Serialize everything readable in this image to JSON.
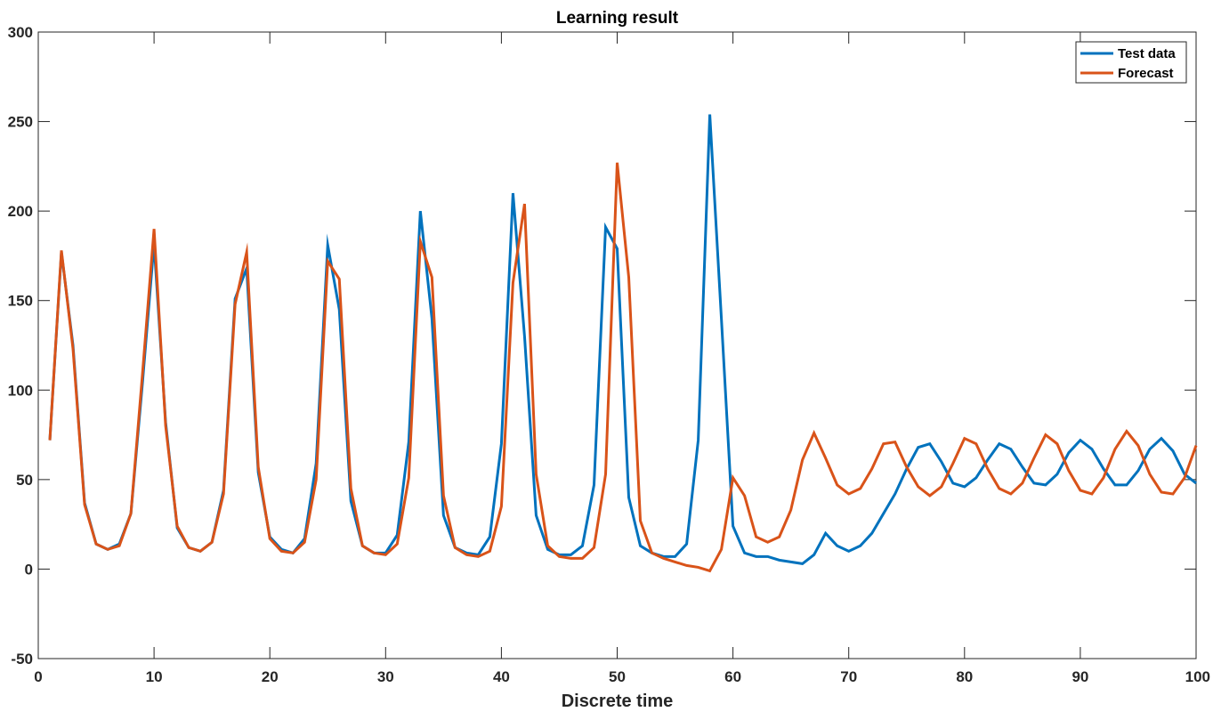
{
  "chart_data": {
    "type": "line",
    "title": "Learning result",
    "xlabel": "Discrete time",
    "ylabel": "",
    "xlim": [
      0,
      100
    ],
    "ylim": [
      -50,
      300
    ],
    "xticks": [
      0,
      10,
      20,
      30,
      40,
      50,
      60,
      70,
      80,
      90,
      100
    ],
    "yticks": [
      -50,
      0,
      50,
      100,
      150,
      200,
      250,
      300
    ],
    "x_tick_labels": [
      "0",
      "10",
      "20",
      "30",
      "40",
      "50",
      "60",
      "70",
      "80",
      "90",
      "100"
    ],
    "y_tick_labels": [
      "-50",
      "0",
      "50",
      "100",
      "150",
      "200",
      "250",
      "300"
    ],
    "grid": false,
    "legend_position": "top-right",
    "x": [
      1,
      2,
      3,
      4,
      5,
      6,
      7,
      8,
      9,
      10,
      11,
      12,
      13,
      14,
      15,
      16,
      17,
      18,
      19,
      20,
      21,
      22,
      23,
      24,
      25,
      26,
      27,
      28,
      29,
      30,
      31,
      32,
      33,
      34,
      35,
      36,
      37,
      38,
      39,
      40,
      41,
      42,
      43,
      44,
      45,
      46,
      47,
      48,
      49,
      50,
      51,
      52,
      53,
      54,
      55,
      56,
      57,
      58,
      59,
      60,
      61,
      62,
      63,
      64,
      65,
      66,
      67,
      68,
      69,
      70,
      71,
      72,
      73,
      74,
      75,
      76,
      77,
      78,
      79,
      80,
      81,
      82,
      83,
      84,
      85,
      86,
      87,
      88,
      89,
      90,
      91,
      92,
      93,
      94,
      95,
      96,
      97,
      98,
      99,
      100
    ],
    "series": [
      {
        "name": "Test data",
        "color": "#0072BD",
        "values": [
          72,
          177,
          125,
          37,
          14,
          11,
          14,
          31,
          104,
          182,
          82,
          23,
          12,
          10,
          15,
          44,
          151,
          168,
          54,
          18,
          11,
          9,
          17,
          59,
          181,
          145,
          38,
          13,
          9,
          9,
          19,
          71,
          200,
          140,
          30,
          12,
          9,
          8,
          18,
          70,
          210,
          130,
          30,
          11,
          8,
          8,
          13,
          47,
          191,
          179,
          40,
          13,
          9,
          7,
          7,
          14,
          72,
          254,
          140,
          24,
          9,
          7,
          7,
          5,
          4,
          3,
          8,
          20,
          13,
          10,
          13,
          20,
          31,
          42,
          56,
          68,
          70,
          60,
          48,
          46,
          51,
          61,
          70,
          67,
          57,
          48,
          47,
          53,
          65,
          72,
          67,
          56,
          47,
          47,
          55,
          67,
          73,
          66,
          53,
          48
        ]
      },
      {
        "name": "Forecast",
        "color": "#D95319",
        "values": [
          72,
          178,
          123,
          36,
          14,
          11,
          13,
          31,
          109,
          190,
          80,
          24,
          12,
          10,
          15,
          42,
          148,
          177,
          57,
          17,
          10,
          9,
          15,
          50,
          172,
          162,
          45,
          13,
          9,
          8,
          14,
          51,
          183,
          163,
          41,
          12,
          8,
          7,
          10,
          35,
          160,
          204,
          53,
          13,
          7,
          6,
          6,
          12,
          53,
          227,
          163,
          27,
          9,
          6,
          4,
          2,
          1,
          -1,
          11,
          51,
          41,
          18,
          15,
          18,
          33,
          61,
          76,
          62,
          47,
          42,
          45,
          56,
          70,
          71,
          57,
          46,
          41,
          46,
          59,
          73,
          70,
          56,
          45,
          42,
          48,
          62,
          75,
          70,
          55,
          44,
          42,
          51,
          67,
          77,
          69,
          53,
          43,
          42,
          51,
          69
        ]
      }
    ]
  }
}
